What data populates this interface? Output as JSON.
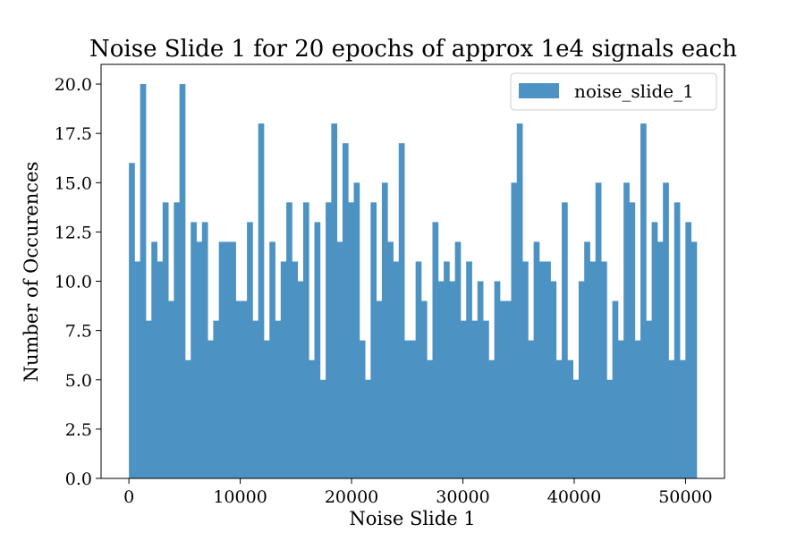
{
  "chart_data": {
    "type": "bar",
    "title": "Noise Slide 1 for 20 epochs of approx 1e4 signals each",
    "xlabel": "Noise Slide 1",
    "ylabel": "Number of Occurences",
    "xlim": [
      -2500,
      53500
    ],
    "ylim": [
      0,
      21
    ],
    "grid": false,
    "legend_placement": "top-right",
    "bar_color": "#4c92c3",
    "bin_start": 0,
    "bin_end": 51000,
    "xticks": [
      0,
      10000,
      20000,
      30000,
      40000,
      50000
    ],
    "xtick_labels": [
      "0",
      "10000",
      "20000",
      "30000",
      "40000",
      "50000"
    ],
    "yticks": [
      0,
      2.5,
      5,
      7.5,
      10,
      12.5,
      15,
      17.5,
      20
    ],
    "ytick_labels": [
      "0.0",
      "2.5",
      "5.0",
      "7.5",
      "10.0",
      "12.5",
      "15.0",
      "17.5",
      "20.0"
    ],
    "series": [
      {
        "name": "noise_slide_1",
        "values": [
          16,
          11,
          20,
          8,
          12,
          11,
          14,
          9,
          14,
          20,
          6,
          13,
          12,
          13,
          7,
          8,
          12,
          12,
          12,
          9,
          9,
          13,
          8,
          18,
          7,
          12,
          8,
          11,
          14,
          11,
          10,
          14,
          6,
          13,
          5,
          14,
          18,
          12,
          17,
          14,
          15,
          7,
          5,
          14,
          9,
          15,
          12,
          11,
          17,
          7,
          7,
          11,
          9,
          6,
          13,
          10,
          11,
          10,
          12,
          8,
          11,
          8,
          10,
          8,
          6,
          10,
          9,
          9,
          15,
          18,
          11,
          7,
          12,
          11,
          11,
          10,
          6,
          14,
          6,
          5,
          10,
          12,
          11,
          15,
          11,
          5,
          9,
          7,
          15,
          14,
          7,
          18,
          8,
          13,
          12,
          15,
          6,
          14,
          6,
          13,
          12
        ]
      }
    ]
  }
}
